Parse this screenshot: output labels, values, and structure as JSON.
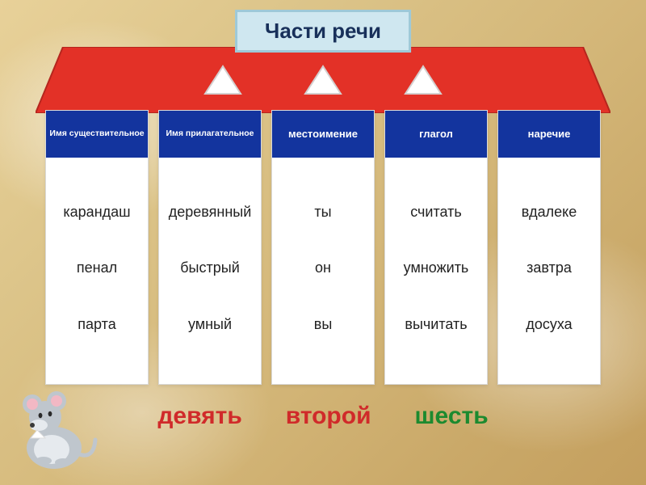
{
  "title": "Части речи",
  "roof": {
    "fill": "#e33127",
    "stroke": "#b5261e",
    "triangle_fill": "#ffffff",
    "triangle_stroke": "#d4cfcf"
  },
  "pillars": [
    {
      "header": "Имя существительное",
      "header_size": "small",
      "words": [
        "карандаш",
        "пенал",
        "парта"
      ]
    },
    {
      "header": "Имя прилагательное",
      "header_size": "small",
      "words": [
        "деревянный",
        "быстрый",
        "умный"
      ]
    },
    {
      "header": "местоимение",
      "header_size": "big",
      "words": [
        "ты",
        "он",
        "вы"
      ]
    },
    {
      "header": "глагол",
      "header_size": "big",
      "words": [
        "считать",
        "умножить",
        "вычитать"
      ]
    },
    {
      "header": "наречие",
      "header_size": "big",
      "words": [
        "вдалеке",
        "завтра",
        "досуха"
      ]
    }
  ],
  "bottom_words": [
    {
      "text": "девять",
      "color_class": "bw-red"
    },
    {
      "text": "второй",
      "color_class": "bw-red"
    },
    {
      "text": "шесть",
      "color_class": "bw-green"
    }
  ],
  "colors": {
    "title_bg": "#cfe7f0",
    "title_border": "#9ec9d8",
    "title_text": "#18305a",
    "header_bg": "#13349e",
    "header_text": "#ffffff",
    "word_text": "#222222",
    "red": "#d02a2a",
    "green": "#1c8a2f"
  },
  "mouse": {
    "body": "#bfc6cd",
    "body_light": "#e6eaee",
    "ear_inner": "#f2b8c4",
    "nose": "#3a3a3a",
    "hanky": "#ffffff"
  }
}
